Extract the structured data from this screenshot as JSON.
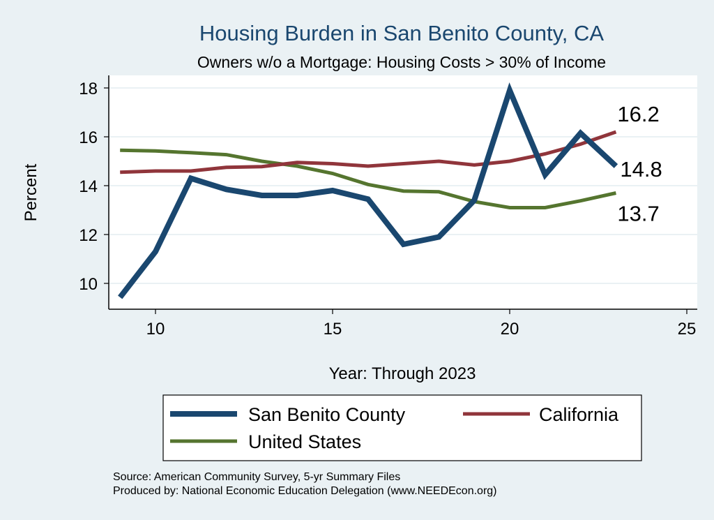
{
  "chart_data": {
    "type": "line",
    "title": "Housing Burden in San Benito County, CA",
    "subtitle": "Owners w/o a Mortgage: Housing Costs > 30% of Income",
    "xlabel": "Year: Through 2023",
    "ylabel": "Percent",
    "xlim": [
      8.7,
      25.3
    ],
    "ylim": [
      8.9,
      18.5
    ],
    "xticks": [
      10,
      15,
      20,
      25
    ],
    "yticks": [
      10,
      12,
      14,
      16,
      18
    ],
    "grid": true,
    "x": [
      9,
      10,
      11,
      12,
      13,
      14,
      15,
      16,
      17,
      18,
      19,
      20,
      21,
      22,
      23
    ],
    "series": [
      {
        "name": "San Benito County",
        "color": "#1a476f",
        "values": [
          9.43,
          11.3,
          14.3,
          13.85,
          13.6,
          13.6,
          13.8,
          13.45,
          11.6,
          11.9,
          13.4,
          17.9,
          14.45,
          16.15,
          14.8
        ],
        "end_label": "14.8"
      },
      {
        "name": "California",
        "color": "#90353b",
        "values": [
          14.55,
          14.6,
          14.6,
          14.75,
          14.78,
          14.95,
          14.9,
          14.8,
          14.9,
          15.0,
          14.85,
          15.0,
          15.3,
          15.7,
          16.2
        ],
        "end_label": "16.2"
      },
      {
        "name": "United States",
        "color": "#55752f",
        "values": [
          15.45,
          15.42,
          15.35,
          15.27,
          15.0,
          14.8,
          14.5,
          14.05,
          13.78,
          13.75,
          13.35,
          13.1,
          13.1,
          13.38,
          13.7
        ],
        "end_label": "13.7"
      }
    ],
    "legend_position": "bottom"
  },
  "notes": [
    "Source: American Community Survey, 5-yr Summary Files",
    "Produced by: National Economic Education Delegation (www.NEEDEcon.org)"
  ]
}
